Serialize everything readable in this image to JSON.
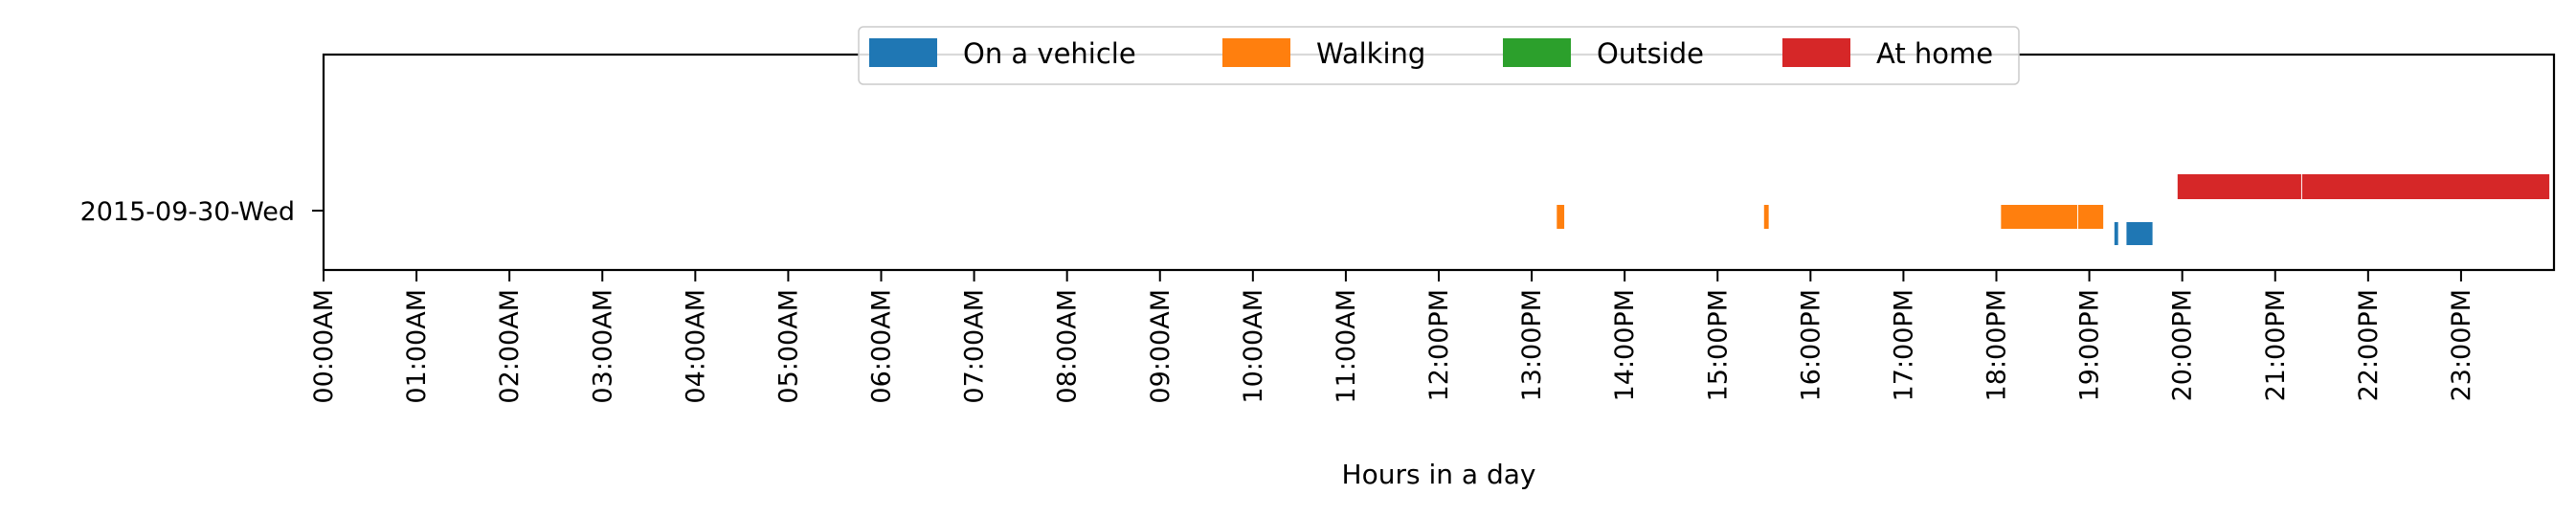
{
  "chart_data": {
    "type": "timeline",
    "xlabel": "Hours in a day",
    "xlim": [
      0,
      24
    ],
    "x_ticks": [
      {
        "value": 0,
        "label": "00:00AM"
      },
      {
        "value": 1,
        "label": "01:00AM"
      },
      {
        "value": 2,
        "label": "02:00AM"
      },
      {
        "value": 3,
        "label": "03:00AM"
      },
      {
        "value": 4,
        "label": "04:00AM"
      },
      {
        "value": 5,
        "label": "05:00AM"
      },
      {
        "value": 6,
        "label": "06:00AM"
      },
      {
        "value": 7,
        "label": "07:00AM"
      },
      {
        "value": 8,
        "label": "08:00AM"
      },
      {
        "value": 9,
        "label": "09:00AM"
      },
      {
        "value": 10,
        "label": "10:00AM"
      },
      {
        "value": 11,
        "label": "11:00AM"
      },
      {
        "value": 12,
        "label": "12:00PM"
      },
      {
        "value": 13,
        "label": "13:00PM"
      },
      {
        "value": 14,
        "label": "14:00PM"
      },
      {
        "value": 15,
        "label": "15:00PM"
      },
      {
        "value": 16,
        "label": "16:00PM"
      },
      {
        "value": 17,
        "label": "17:00PM"
      },
      {
        "value": 18,
        "label": "18:00PM"
      },
      {
        "value": 19,
        "label": "19:00PM"
      },
      {
        "value": 20,
        "label": "20:00PM"
      },
      {
        "value": 21,
        "label": "21:00PM"
      },
      {
        "value": 22,
        "label": "22:00PM"
      },
      {
        "value": 23,
        "label": "23:00PM"
      }
    ],
    "y_categories": [
      "2015-09-30-Wed"
    ],
    "legend_position": "top-center",
    "series": [
      {
        "name": "On a vehicle",
        "color": "#1f77b4",
        "intervals": [
          [
            19.27,
            19.31
          ],
          [
            19.4,
            19.68
          ]
        ]
      },
      {
        "name": "Walking",
        "color": "#ff7f0e",
        "intervals": [
          [
            13.27,
            13.35
          ],
          [
            15.5,
            15.55
          ],
          [
            18.05,
            18.87
          ],
          [
            18.88,
            19.15
          ]
        ]
      },
      {
        "name": "Outside",
        "color": "#2ca02c",
        "intervals": []
      },
      {
        "name": "At home",
        "color": "#d62728",
        "intervals": [
          [
            19.95,
            21.28
          ],
          [
            21.29,
            23.95
          ]
        ]
      }
    ]
  }
}
